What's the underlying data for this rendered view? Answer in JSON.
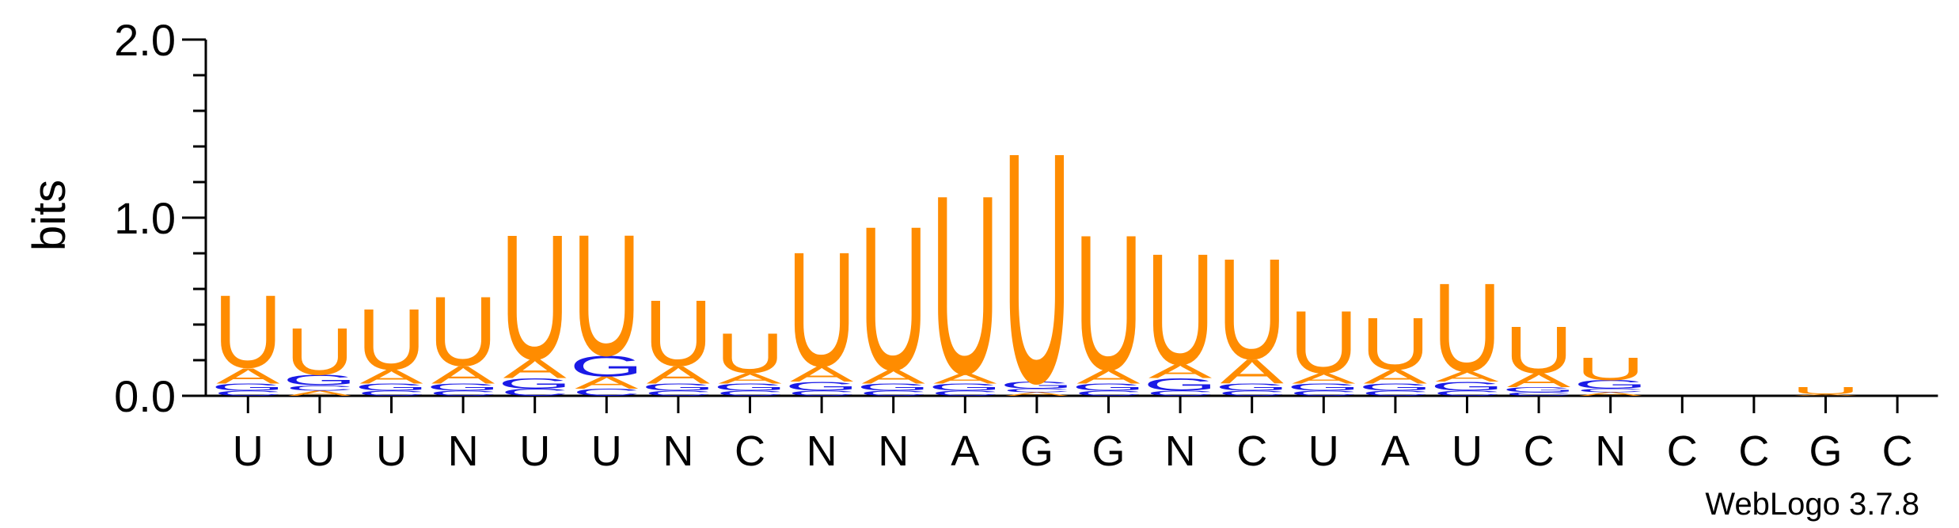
{
  "chart_data": {
    "type": "sequence-logo",
    "ylabel": "bits",
    "ylim": [
      0,
      2.0
    ],
    "y_ticks": [
      "0.0",
      "1.0",
      "2.0"
    ],
    "grid": false,
    "legend": "none",
    "colors": {
      "U": "#FF8C00",
      "A": "#FF8C00",
      "G": "#1A1AE6",
      "C": "#1A1AE6"
    },
    "x": [
      "U",
      "U",
      "U",
      "N",
      "U",
      "U",
      "N",
      "C",
      "N",
      "N",
      "A",
      "G",
      "G",
      "N",
      "C",
      "U",
      "A",
      "U",
      "C",
      "N",
      "C",
      "C",
      "G",
      "C"
    ],
    "columns": [
      {
        "U": 0.42,
        "A": 0.09,
        "G": 0.04,
        "C": 0.03
      },
      {
        "U": 0.27,
        "A": 0.03,
        "G": 0.06,
        "C": 0.03
      },
      {
        "U": 0.35,
        "A": 0.08,
        "G": 0.04,
        "C": 0.03
      },
      {
        "U": 0.4,
        "A": 0.1,
        "G": 0.04,
        "C": 0.03
      },
      {
        "U": 0.72,
        "A": 0.11,
        "G": 0.06,
        "C": 0.04
      },
      {
        "U": 0.7,
        "A": 0.07,
        "G": 0.12,
        "C": 0.04
      },
      {
        "U": 0.38,
        "A": 0.1,
        "G": 0.04,
        "C": 0.03
      },
      {
        "U": 0.23,
        "A": 0.06,
        "G": 0.04,
        "C": 0.03
      },
      {
        "U": 0.66,
        "A": 0.09,
        "G": 0.05,
        "C": 0.03
      },
      {
        "U": 0.83,
        "A": 0.08,
        "G": 0.04,
        "C": 0.03
      },
      {
        "U": 1.03,
        "A": 0.06,
        "G": 0.04,
        "C": 0.03
      },
      {
        "U": 1.33,
        "A": 0.02,
        "G": 0.04,
        "C": 0.02
      },
      {
        "U": 0.78,
        "A": 0.08,
        "G": 0.04,
        "C": 0.03
      },
      {
        "U": 0.64,
        "A": 0.08,
        "G": 0.07,
        "C": 0.03
      },
      {
        "U": 0.58,
        "A": 0.14,
        "G": 0.04,
        "C": 0.03
      },
      {
        "U": 0.36,
        "A": 0.06,
        "G": 0.04,
        "C": 0.03
      },
      {
        "U": 0.3,
        "A": 0.08,
        "G": 0.04,
        "C": 0.03
      },
      {
        "U": 0.51,
        "A": 0.06,
        "G": 0.05,
        "C": 0.03
      },
      {
        "U": 0.27,
        "A": 0.08,
        "G": 0.03,
        "C": 0.02
      },
      {
        "U": 0.13,
        "A": 0.02,
        "G": 0.05,
        "C": 0.02
      },
      {
        "U": 0.0,
        "A": 0.0,
        "G": 0.0,
        "C": 0.0
      },
      {
        "U": 0.0,
        "A": 0.0,
        "G": 0.0,
        "C": 0.0
      },
      {
        "U": 0.04,
        "A": 0.01,
        "G": 0.0,
        "C": 0.0
      },
      {
        "U": 0.0,
        "A": 0.0,
        "G": 0.0,
        "C": 0.0
      }
    ]
  },
  "credit": "WebLogo 3.7.8"
}
